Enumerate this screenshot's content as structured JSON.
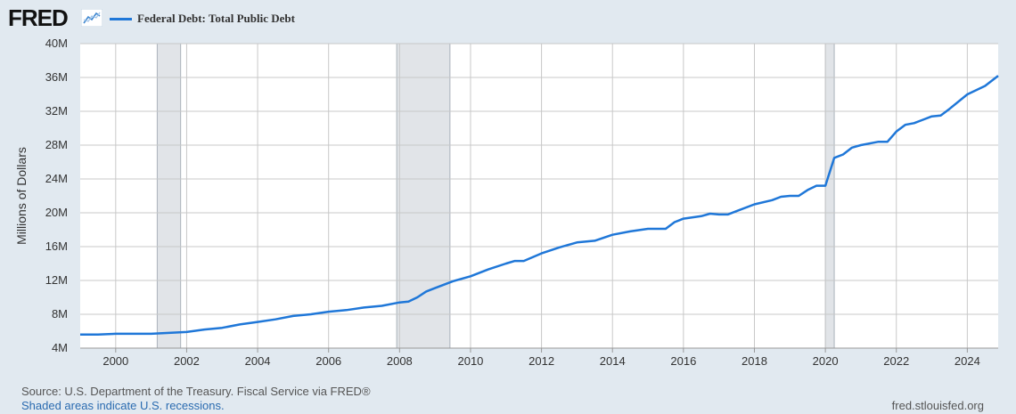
{
  "logo": {
    "text": "FRED",
    "icon": "line-chart-icon"
  },
  "colors": {
    "series": "#1f77d8",
    "recession": "#e1e4e8",
    "grid": "#c8c8c8"
  },
  "footer": {
    "source": "Source: U.S. Department of the Treasury. Fiscal Service via FRED®",
    "shaded_note": "Shaded areas indicate U.S. recessions.",
    "site": "fred.stlouisfed.org"
  },
  "chart_data": {
    "type": "line",
    "ylabel": "Millions of Dollars",
    "xlabel": "",
    "xlim": [
      1999.0,
      2024.87
    ],
    "ylim": [
      4,
      40
    ],
    "yticks": [
      4,
      8,
      12,
      16,
      20,
      24,
      28,
      32,
      36,
      40
    ],
    "ytick_labels": [
      "4M",
      "8M",
      "12M",
      "16M",
      "20M",
      "24M",
      "28M",
      "32M",
      "36M",
      "40M"
    ],
    "xticks": [
      2000,
      2002,
      2004,
      2006,
      2008,
      2010,
      2012,
      2014,
      2016,
      2018,
      2020,
      2022,
      2024
    ],
    "xtick_labels": [
      "2000",
      "2002",
      "2004",
      "2006",
      "2008",
      "2010",
      "2012",
      "2014",
      "2016",
      "2018",
      "2020",
      "2022",
      "2024"
    ],
    "recessions": [
      [
        2001.17,
        2001.83
      ],
      [
        2007.92,
        2009.42
      ],
      [
        2020.0,
        2020.25
      ]
    ],
    "grid": true,
    "series": [
      {
        "name": "Federal Debt: Total Public Debt",
        "x": [
          1999.0,
          1999.5,
          2000.0,
          2000.5,
          2001.0,
          2001.5,
          2002.0,
          2002.5,
          2003.0,
          2003.5,
          2004.0,
          2004.5,
          2005.0,
          2005.5,
          2006.0,
          2006.5,
          2007.0,
          2007.5,
          2008.0,
          2008.25,
          2008.5,
          2008.75,
          2009.0,
          2009.5,
          2010.0,
          2010.5,
          2011.0,
          2011.25,
          2011.5,
          2012.0,
          2012.5,
          2013.0,
          2013.5,
          2014.0,
          2014.5,
          2015.0,
          2015.5,
          2015.75,
          2016.0,
          2016.5,
          2016.75,
          2017.0,
          2017.25,
          2017.5,
          2018.0,
          2018.5,
          2018.75,
          2019.0,
          2019.25,
          2019.5,
          2019.75,
          2020.0,
          2020.25,
          2020.5,
          2020.75,
          2021.0,
          2021.5,
          2021.75,
          2022.0,
          2022.25,
          2022.5,
          2022.75,
          2023.0,
          2023.25,
          2023.5,
          2024.0,
          2024.5,
          2024.87
        ],
        "values": [
          5.6,
          5.6,
          5.7,
          5.7,
          5.7,
          5.8,
          5.9,
          6.2,
          6.4,
          6.8,
          7.1,
          7.4,
          7.8,
          8.0,
          8.3,
          8.5,
          8.8,
          9.0,
          9.4,
          9.5,
          10.0,
          10.7,
          11.1,
          11.9,
          12.5,
          13.3,
          14.0,
          14.3,
          14.3,
          15.2,
          15.9,
          16.5,
          16.7,
          17.4,
          17.8,
          18.1,
          18.1,
          18.9,
          19.3,
          19.6,
          19.9,
          19.8,
          19.8,
          20.2,
          21.0,
          21.5,
          21.9,
          22.0,
          22.0,
          22.7,
          23.2,
          23.2,
          26.5,
          26.9,
          27.7,
          28.0,
          28.4,
          28.4,
          29.6,
          30.4,
          30.6,
          31.0,
          31.4,
          31.5,
          32.3,
          34.0,
          35.0,
          36.2
        ]
      }
    ]
  }
}
